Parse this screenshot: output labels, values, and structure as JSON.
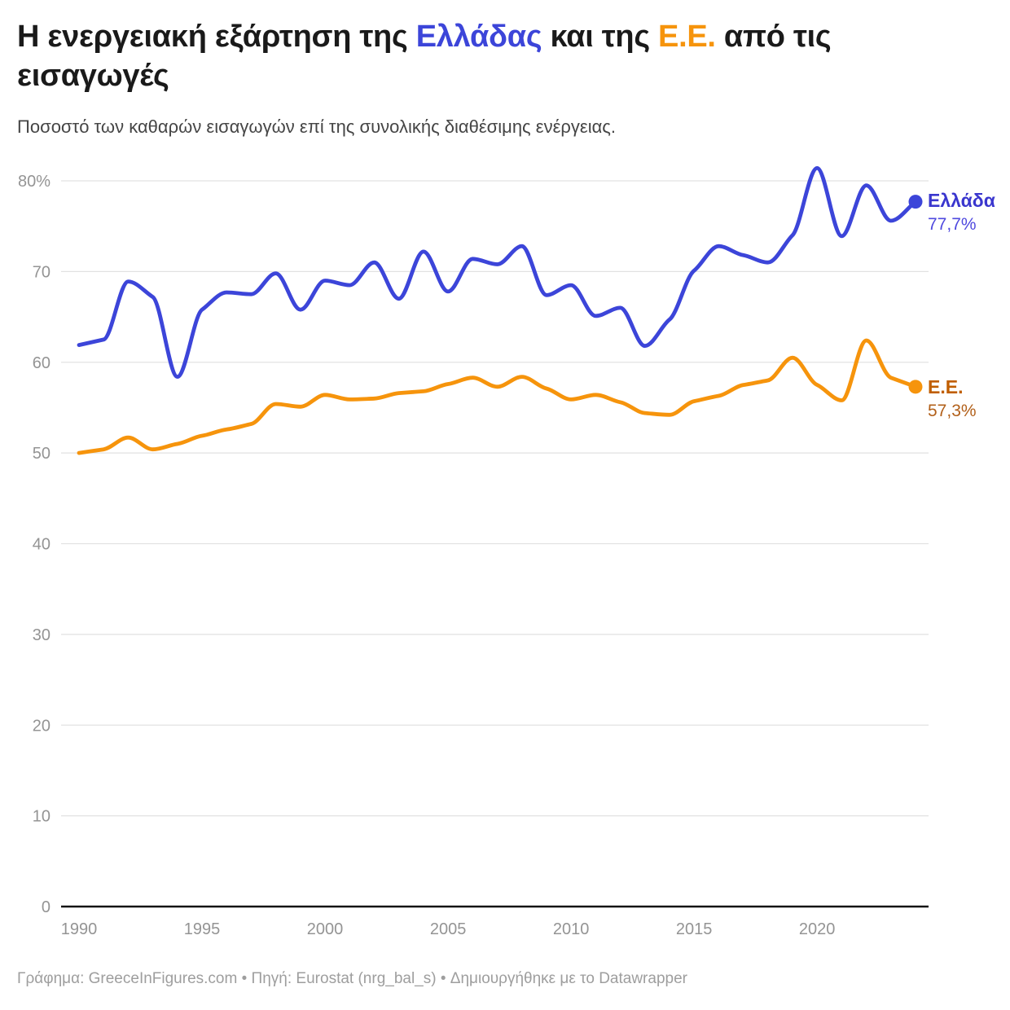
{
  "header": {
    "title_segments": {
      "pre": "Η ενεργειακή εξάρτηση της ",
      "greece": "Ελλάδας",
      "mid": " και της ",
      "eu": "Ε.Ε.",
      "post": " από τις εισαγωγές"
    },
    "subtitle": "Ποσοστό των καθαρών εισαγωγών επί της συνολικής διαθέσιμης ενέργειας."
  },
  "colors": {
    "greece_line": "#3c45d9",
    "eu_line": "#f6940c",
    "greece_label": "#3a36ce",
    "greece_value": "#4f49df",
    "eu_label": "#c05e00",
    "eu_value": "#b2601a",
    "grid": "#e2e2e2",
    "axis": "#141414",
    "tick_text": "#949494",
    "title_text": "#1a1a1a",
    "subtitle_text": "#454545",
    "footer_text": "#9e9e9e"
  },
  "series_labels": {
    "greece_name": "Ελλάδα",
    "greece_value": "77,7%",
    "eu_name": "Ε.Ε.",
    "eu_value": "57,3%"
  },
  "footer": {
    "text": "Γράφημα: GreeceInFigures.com • Πηγή: Eurostat (nrg_bal_s) • Δημιουργήθηκε με το Datawrapper"
  },
  "chart_data": {
    "type": "line",
    "title": "Η ενεργειακή εξάρτηση της Ελλάδας και της Ε.Ε. από τις εισαγωγές",
    "subtitle": "Ποσοστό των καθαρών εισαγωγών επί της συνολικής διαθέσιμης ενέργειας.",
    "xlabel": "",
    "ylabel": "",
    "ylim": [
      0,
      80
    ],
    "grid": "horizontal",
    "legend_position": "right-of-line-end",
    "x_ticks": [
      1990,
      1995,
      2000,
      2005,
      2010,
      2015,
      2020
    ],
    "y_ticks": [
      {
        "value": 80,
        "label": "80%"
      },
      {
        "value": 70,
        "label": "70"
      },
      {
        "value": 60,
        "label": "60"
      },
      {
        "value": 50,
        "label": "50"
      },
      {
        "value": 40,
        "label": "40"
      },
      {
        "value": 30,
        "label": "30"
      },
      {
        "value": 20,
        "label": "20"
      },
      {
        "value": 10,
        "label": "10"
      },
      {
        "value": 0,
        "label": "0"
      }
    ],
    "x": [
      1990,
      1991,
      1992,
      1993,
      1994,
      1995,
      1996,
      1997,
      1998,
      1999,
      2000,
      2001,
      2002,
      2003,
      2004,
      2005,
      2006,
      2007,
      2008,
      2009,
      2010,
      2011,
      2012,
      2013,
      2014,
      2015,
      2016,
      2017,
      2018,
      2019,
      2020,
      2021,
      2022,
      2023,
      2024
    ],
    "series": [
      {
        "name": "Ελλάδα",
        "color": "#3c45d9",
        "end_label_value": "77,7%",
        "values": [
          61.9,
          62.5,
          68.9,
          67.2,
          58.4,
          65.8,
          67.7,
          67.5,
          69.8,
          65.8,
          69.0,
          68.5,
          71.0,
          67.0,
          72.2,
          67.8,
          71.4,
          70.8,
          72.8,
          67.4,
          68.5,
          65.1,
          66.0,
          61.8,
          64.7,
          70.1,
          72.8,
          71.8,
          71.0,
          74.0,
          81.4,
          73.9,
          79.5,
          75.6,
          77.7
        ]
      },
      {
        "name": "Ε.Ε.",
        "color": "#f6940c",
        "end_label_value": "57,3%",
        "values": [
          50.0,
          50.4,
          51.7,
          50.4,
          51.0,
          51.9,
          52.6,
          53.2,
          55.4,
          55.1,
          56.4,
          55.9,
          56.0,
          56.6,
          56.8,
          57.6,
          58.3,
          57.3,
          58.4,
          57.1,
          55.9,
          56.4,
          55.6,
          54.4,
          54.2,
          55.7,
          56.3,
          57.5,
          58.0,
          60.5,
          57.5,
          55.8,
          62.4,
          58.3,
          57.3
        ]
      }
    ]
  }
}
